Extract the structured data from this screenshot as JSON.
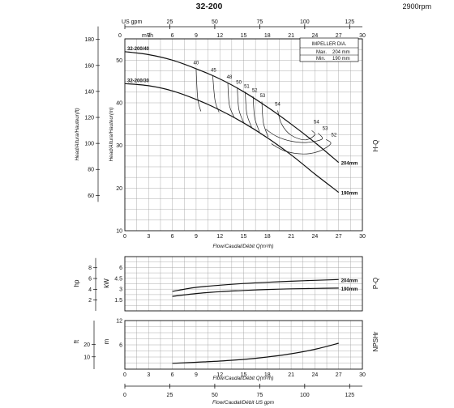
{
  "title": "32-200",
  "rpm": "2900rpm",
  "legend": {
    "title": "IMPELLER DIA.",
    "rows": [
      {
        "label": "Max.",
        "value": "204 mm"
      },
      {
        "label": "Min.",
        "value": "190 mm"
      }
    ]
  },
  "axes": {
    "flow_m3h_ticks": [
      "0",
      "3",
      "6",
      "9",
      "12",
      "15",
      "18",
      "21",
      "24",
      "27",
      "30"
    ],
    "flow_m3h_unit": "m³/h",
    "us_gpm_unit": "US gpm",
    "us_gpm_ticks_top": [
      "0",
      "25",
      "50",
      "75",
      "100",
      "125"
    ],
    "us_gpm_ticks_bottom": [
      "0",
      "25",
      "50",
      "75",
      "100",
      "125"
    ],
    "flow_label": "Flow/Caudal/Débit Q(m³/h)",
    "flow_label_gpm": "Flow/Caudal/Débit  US gpm",
    "head_ft_ticks": [
      "60",
      "80",
      "100",
      "120",
      "140",
      "160",
      "180"
    ],
    "head_m_ticks": [
      "10",
      "20",
      "30",
      "40",
      "50"
    ],
    "head_label_ft": "Head/Altura/Hauteur(ft)",
    "head_label_m": "Head/Altura/Hauteur(m)",
    "hq_label": "H-Q",
    "hp_ticks": [
      "2",
      "4",
      "6",
      "8"
    ],
    "kw_ticks": [
      "1.5",
      "3",
      "4.5",
      "6"
    ],
    "hp_unit": "hp",
    "kw_unit": "kW",
    "pq_label": "P-Q",
    "ft_ticks": [
      "10",
      "20"
    ],
    "npsh_m_ticks": [
      "6",
      "12"
    ],
    "ft_unit": "ft",
    "npsh_m_unit": "m",
    "npsh_label": "NPSHr"
  },
  "chart_data": [
    {
      "type": "line",
      "name": "H-Q",
      "xlabel": "Flow/Caudal/Débit Q(m³/h)",
      "ylabel": "Head/Altura/Hauteur(m)",
      "xlim": [
        0,
        30
      ],
      "ylim": [
        10,
        55
      ],
      "grid": true,
      "series": [
        {
          "name": "32-200/40",
          "end_label": "204mm",
          "x": [
            0,
            3,
            6,
            9,
            12,
            15,
            18,
            21,
            24,
            27
          ],
          "y": [
            52,
            51.3,
            50,
            48,
            45.6,
            42.6,
            39,
            35,
            30.7,
            26
          ]
        },
        {
          "name": "32-200/30",
          "end_label": "190mm",
          "x": [
            0,
            3,
            6,
            9,
            12,
            15,
            18,
            21,
            24,
            27
          ],
          "y": [
            44.5,
            44,
            42.8,
            40.8,
            38.3,
            35.3,
            31.8,
            27.8,
            23.3,
            19
          ]
        }
      ],
      "efficiency_labels": [
        {
          "text": "40",
          "x": 9,
          "y": 49
        },
        {
          "text": "45",
          "x": 11.2,
          "y": 47.3
        },
        {
          "text": "48",
          "x": 13.2,
          "y": 45.7
        },
        {
          "text": "50",
          "x": 14.4,
          "y": 44.5
        },
        {
          "text": "51",
          "x": 15.4,
          "y": 43.5
        },
        {
          "text": "52",
          "x": 16.4,
          "y": 42.6
        },
        {
          "text": "53",
          "x": 17.4,
          "y": 41.3
        },
        {
          "text": "54",
          "x": 19.3,
          "y": 39.3
        },
        {
          "text": "54",
          "x": 24.2,
          "y": 35.2
        },
        {
          "text": "53",
          "x": 25.3,
          "y": 33.6
        },
        {
          "text": "52",
          "x": 26.4,
          "y": 32.1
        }
      ],
      "efficiency_curves": [
        {
          "x": [
            9,
            9.2,
            9.6
          ],
          "y": [
            48,
            41,
            38
          ]
        },
        {
          "x": [
            11.1,
            11.4,
            11.9
          ],
          "y": [
            46.3,
            40.5,
            37.8
          ]
        },
        {
          "x": [
            13,
            13.2,
            13.8
          ],
          "y": [
            44.7,
            39.5,
            36.6
          ]
        },
        {
          "x": [
            14.2,
            14.4,
            15
          ],
          "y": [
            43.6,
            38.5,
            35.4
          ]
        },
        {
          "x": [
            15.2,
            15.4,
            16
          ],
          "y": [
            42.6,
            37.5,
            34.3
          ]
        },
        {
          "x": [
            16.2,
            16.4,
            17
          ],
          "y": [
            41.5,
            36.5,
            33.2
          ]
        },
        {
          "x": [
            17.3,
            17.5,
            18.1
          ],
          "y": [
            40.3,
            35.3,
            32
          ]
        },
        {
          "x": [
            19.3,
            19.8,
            21,
            22.8,
            24,
            23.6
          ],
          "y": [
            38.2,
            35,
            32.4,
            31.3,
            32.5,
            33.5
          ]
        },
        {
          "x": [
            17.8,
            19.2,
            21,
            23,
            24.9,
            24.4
          ],
          "y": [
            33.8,
            32.1,
            31,
            30.7,
            31.5,
            32.9
          ]
        },
        {
          "x": [
            18.5,
            20.2,
            22.5,
            24.5,
            26,
            25.4
          ],
          "y": [
            30.4,
            28.7,
            28,
            28.6,
            30.4,
            31.4
          ]
        }
      ]
    },
    {
      "type": "line",
      "name": "P-Q",
      "ylabel": "kW",
      "xlim": [
        0,
        30
      ],
      "ylim": [
        0,
        7.5
      ],
      "grid": true,
      "series": [
        {
          "name": "204mm",
          "end_label": "204mm",
          "x": [
            6,
            9,
            12,
            15,
            18,
            21,
            24,
            27
          ],
          "y": [
            2.7,
            3.25,
            3.55,
            3.78,
            3.95,
            4.1,
            4.22,
            4.33
          ]
        },
        {
          "name": "190mm",
          "end_label": "190mm",
          "x": [
            6,
            9,
            12,
            15,
            18,
            21,
            24,
            27
          ],
          "y": [
            2.0,
            2.4,
            2.65,
            2.82,
            2.95,
            3.04,
            3.1,
            3.15
          ]
        }
      ]
    },
    {
      "type": "line",
      "name": "NPSHr",
      "ylabel": "m",
      "xlim": [
        0,
        30
      ],
      "ylim": [
        0,
        12
      ],
      "grid": true,
      "series": [
        {
          "name": "NPSHr",
          "x": [
            6,
            9,
            12,
            15,
            18,
            21,
            24,
            27
          ],
          "y": [
            1.45,
            1.7,
            2.0,
            2.4,
            3.0,
            3.8,
            4.9,
            6.4
          ]
        }
      ]
    }
  ]
}
